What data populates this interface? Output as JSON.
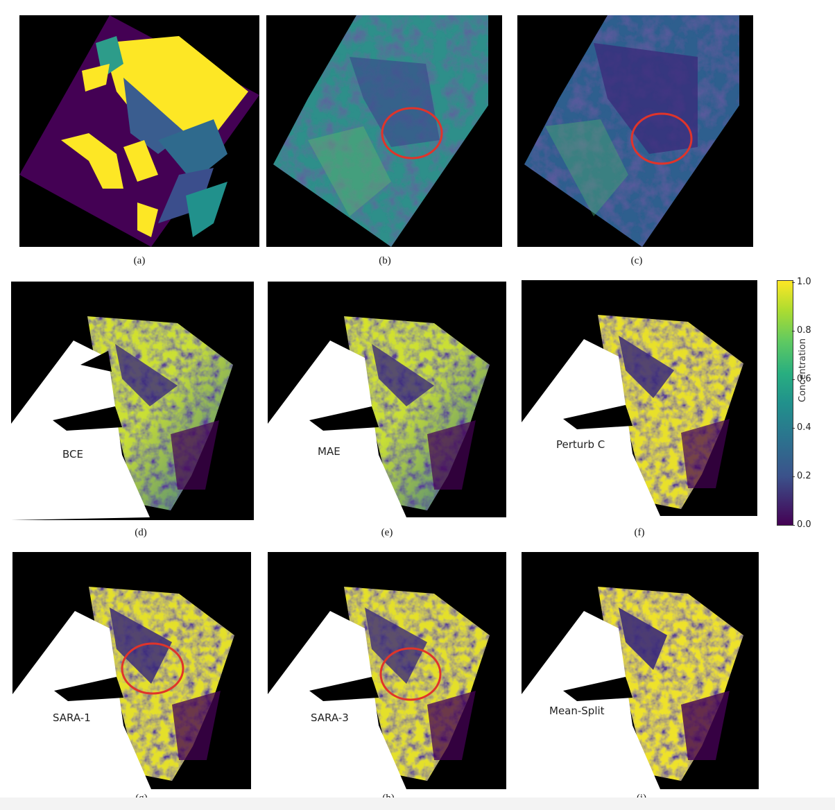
{
  "captions": [
    "(a)",
    "(b)",
    "(c)",
    "(d)",
    "(e)",
    "(f)",
    "(g)",
    "(h)",
    "(i)"
  ],
  "labels": {
    "d": "BCE",
    "e": "MAE",
    "f": "Perturb C",
    "g": "SARA-1",
    "h": "SARA-3",
    "i": "Mean-Split"
  },
  "colorbar": {
    "title": "Concentration",
    "ticks": [
      "1.0",
      "0.8",
      "0.6",
      "0.4",
      "0.2",
      "0.0"
    ],
    "colormap": [
      "#440154",
      "#3b528b",
      "#21918c",
      "#5ec962",
      "#fde725"
    ]
  },
  "colors": {
    "highlight_circle": "#e0342a",
    "land": "#ffffff",
    "background": "#000000"
  }
}
